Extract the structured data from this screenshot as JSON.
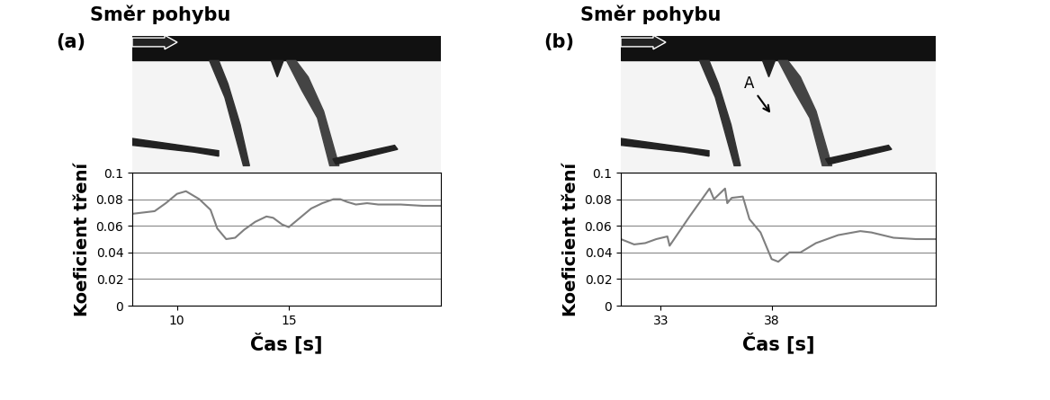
{
  "chart_data": [
    {
      "type": "line",
      "title": "(a)",
      "annotations": [
        "Směr pohybu"
      ],
      "x_label": "Čas [s]",
      "y_label": "Koeficient tření",
      "x": [
        8,
        9,
        9.5,
        10,
        10.4,
        11,
        11.5,
        11.8,
        12.2,
        12.6,
        13,
        13.5,
        14,
        14.3,
        14.7,
        15,
        15.5,
        16,
        16.5,
        17,
        17.3,
        17.6,
        18,
        18.5,
        19,
        20,
        21,
        21.8
      ],
      "values": [
        0.069,
        0.071,
        0.077,
        0.084,
        0.086,
        0.08,
        0.072,
        0.058,
        0.05,
        0.051,
        0.057,
        0.063,
        0.067,
        0.066,
        0.061,
        0.059,
        0.066,
        0.073,
        0.077,
        0.08,
        0.08,
        0.078,
        0.076,
        0.077,
        0.076,
        0.076,
        0.075,
        0.075
      ],
      "color": "#7f7f7f",
      "xlim": [
        8,
        21.8
      ],
      "xticks": [
        10,
        15
      ],
      "ylim": [
        0,
        0.1
      ],
      "yticks": [
        0,
        0.02,
        0.04,
        0.06,
        0.08,
        0.1
      ],
      "grid": true
    },
    {
      "type": "line",
      "title": "(b)",
      "annotations": [
        "Směr pohybu",
        "A"
      ],
      "x_label": "Čas [s]",
      "y_label": "Koeficient tření",
      "x": [
        31.2,
        31.8,
        32.3,
        32.8,
        33.3,
        33.4,
        34.3,
        35.2,
        35.4,
        35.9,
        36.0,
        36.2,
        36.7,
        37.0,
        37.5,
        38.0,
        38.3,
        38.8,
        39.3,
        40.0,
        41.0,
        42.0,
        42.5,
        43.5,
        44.5,
        45.4
      ],
      "values": [
        0.05,
        0.046,
        0.047,
        0.05,
        0.052,
        0.045,
        0.067,
        0.088,
        0.08,
        0.088,
        0.077,
        0.081,
        0.082,
        0.065,
        0.055,
        0.035,
        0.033,
        0.04,
        0.04,
        0.047,
        0.053,
        0.056,
        0.055,
        0.051,
        0.05,
        0.05
      ],
      "color": "#7f7f7f",
      "xlim": [
        31.2,
        45.4
      ],
      "xticks": [
        33,
        38
      ],
      "ylim": [
        0,
        0.1
      ],
      "yticks": [
        0,
        0.02,
        0.04,
        0.06,
        0.08,
        0.1
      ],
      "grid": true
    }
  ]
}
